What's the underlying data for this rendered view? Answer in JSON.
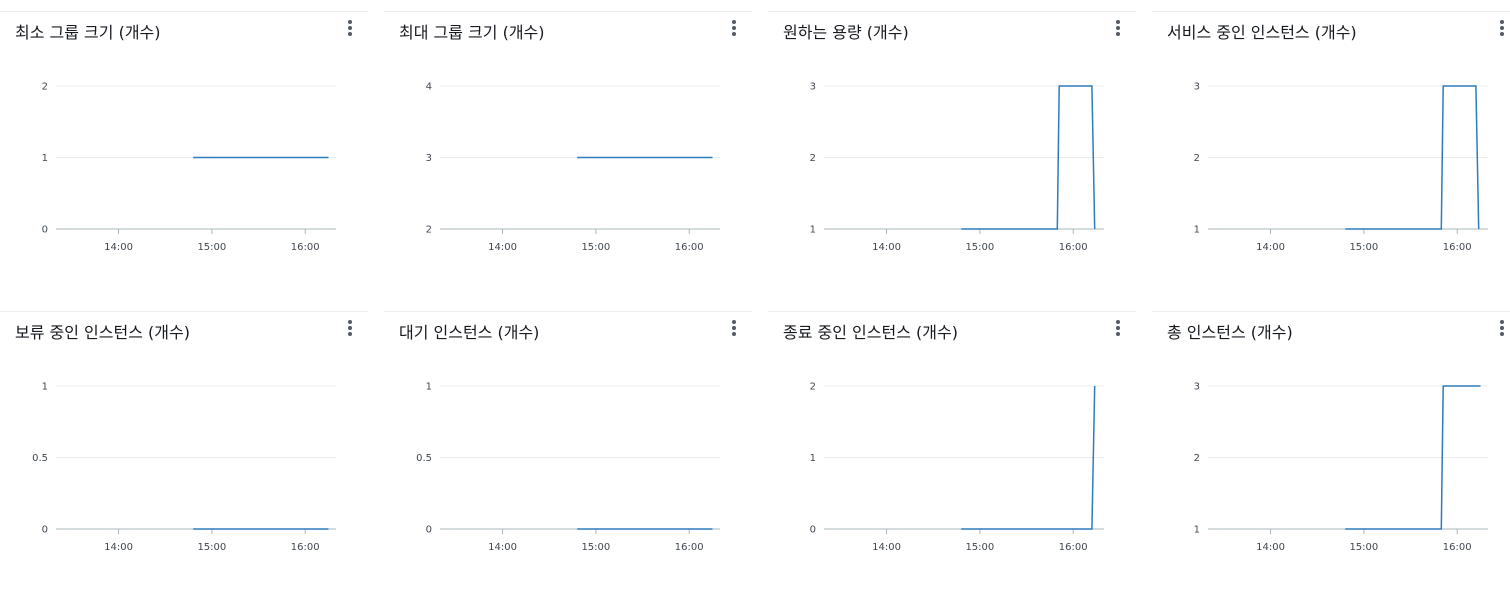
{
  "colors": {
    "line": "#2e7bbd",
    "grid": "#e9ebed",
    "axis": "#aab7b8",
    "title": "#16191f"
  },
  "icons": {
    "menu": "vertical-ellipsis-icon"
  },
  "x_axis": {
    "ticks": [
      "14:00",
      "15:00",
      "16:00"
    ],
    "tick_values": [
      14.0,
      15.0,
      16.0
    ],
    "range": [
      13.33,
      16.33
    ]
  },
  "chart_data": [
    {
      "type": "line",
      "title": "최소 그룹 크기 (개수)",
      "yticks": [
        "0",
        "1",
        "2"
      ],
      "ylim": [
        0,
        2
      ],
      "x": [
        14.8,
        16.25
      ],
      "values": [
        1,
        1
      ]
    },
    {
      "type": "line",
      "title": "최대 그룹 크기 (개수)",
      "yticks": [
        "2",
        "3",
        "4"
      ],
      "ylim": [
        2,
        4
      ],
      "x": [
        14.8,
        16.25
      ],
      "values": [
        3,
        3
      ]
    },
    {
      "type": "line",
      "title": "원하는 용량 (개수)",
      "yticks": [
        "1",
        "2",
        "3"
      ],
      "ylim": [
        1,
        3
      ],
      "x": [
        14.8,
        15.83,
        15.85,
        16.2,
        16.23
      ],
      "values": [
        1,
        1,
        3,
        3,
        1
      ]
    },
    {
      "type": "line",
      "title": "서비스 중인 인스턴스 (개수)",
      "yticks": [
        "1",
        "2",
        "3"
      ],
      "ylim": [
        1,
        3
      ],
      "x": [
        14.8,
        15.83,
        15.85,
        16.2,
        16.23
      ],
      "values": [
        1,
        1,
        3,
        3,
        1
      ]
    },
    {
      "type": "line",
      "title": "보류 중인 인스턴스 (개수)",
      "yticks": [
        "0",
        "0.5",
        "1"
      ],
      "ylim": [
        0,
        1
      ],
      "x": [
        14.8,
        16.25
      ],
      "values": [
        0,
        0
      ]
    },
    {
      "type": "line",
      "title": "대기 인스턴스 (개수)",
      "yticks": [
        "0",
        "0.5",
        "1"
      ],
      "ylim": [
        0,
        1
      ],
      "x": [
        14.8,
        16.25
      ],
      "values": [
        0,
        0
      ]
    },
    {
      "type": "line",
      "title": "종료 중인 인스턴스 (개수)",
      "yticks": [
        "0",
        "1",
        "2"
      ],
      "ylim": [
        0,
        2
      ],
      "x": [
        14.8,
        16.2,
        16.23
      ],
      "values": [
        0,
        0,
        2
      ]
    },
    {
      "type": "line",
      "title": "총 인스턴스 (개수)",
      "yticks": [
        "1",
        "2",
        "3"
      ],
      "ylim": [
        1,
        3
      ],
      "x": [
        14.8,
        15.83,
        15.85,
        16.25
      ],
      "values": [
        1,
        1,
        3,
        3
      ]
    }
  ]
}
